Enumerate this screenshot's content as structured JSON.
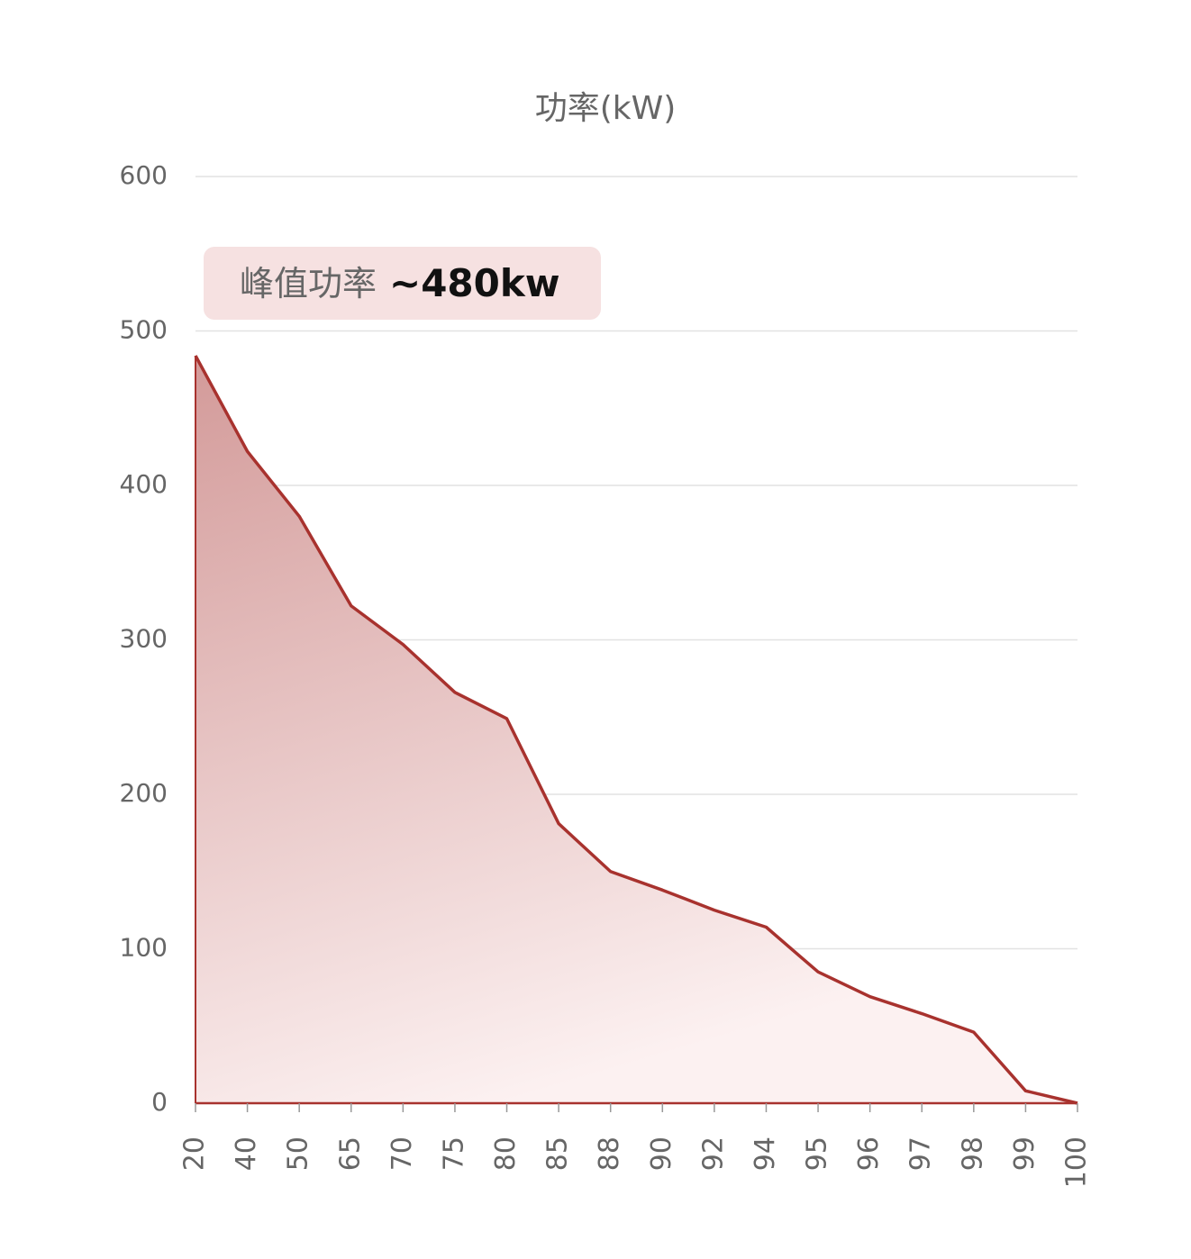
{
  "chart_data": {
    "type": "area",
    "title": "功率(kW)",
    "annotation": {
      "label": "峰值功率",
      "highlight": "~480kw"
    },
    "categories": [
      "20",
      "40",
      "50",
      "65",
      "70",
      "75",
      "80",
      "85",
      "88",
      "90",
      "92",
      "94",
      "95",
      "96",
      "97",
      "98",
      "99",
      "100"
    ],
    "values": [
      484,
      422,
      380,
      322,
      297,
      266,
      249,
      181,
      150,
      138,
      125,
      114,
      85,
      69,
      58,
      46,
      8,
      0
    ],
    "color": "#a8322e",
    "ylim": [
      0,
      600
    ],
    "yticks": [
      0,
      100,
      200,
      300,
      400,
      500,
      600
    ],
    "grid": true
  }
}
